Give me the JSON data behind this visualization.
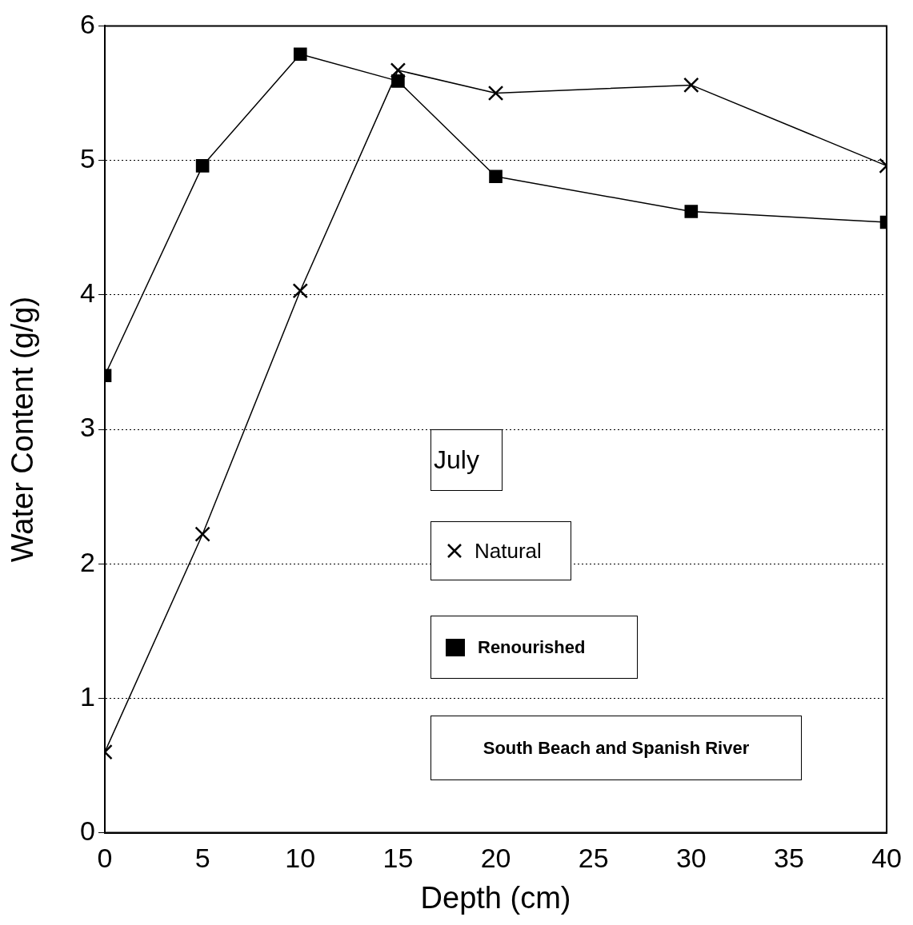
{
  "chart_data": {
    "type": "line",
    "xlabel": "Depth (cm)",
    "ylabel": "Water Content (g/g)",
    "x": [
      0,
      5,
      10,
      15,
      20,
      30,
      40
    ],
    "series": [
      {
        "name": "Natural",
        "color": "#000000",
        "marker": "cross",
        "values": [
          0.6,
          2.22,
          4.03,
          5.67,
          5.5,
          5.56,
          4.96
        ]
      },
      {
        "name": "Renourished",
        "color": "#000000",
        "marker": "square",
        "values": [
          3.4,
          4.96,
          5.79,
          5.59,
          4.88,
          4.62,
          4.54
        ]
      }
    ],
    "xlim": [
      0,
      40
    ],
    "xticks": [
      0,
      5,
      10,
      15,
      20,
      25,
      30,
      35,
      40
    ],
    "ylim": [
      0,
      6
    ],
    "yticks": [
      0,
      1,
      2,
      3,
      4,
      5,
      6
    ],
    "grid": "y",
    "legend": "bottom",
    "line_style": "solid",
    "annotations": [
      "July",
      "South Beach and Spanish River"
    ]
  }
}
